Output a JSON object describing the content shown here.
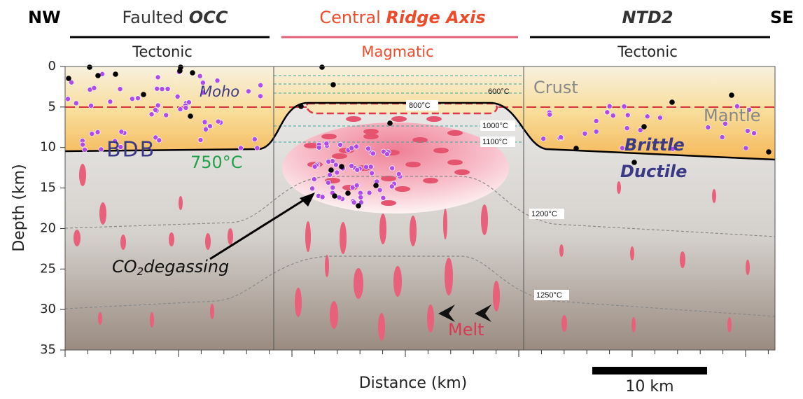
{
  "header": {
    "left_end": "NW",
    "right_end": "SE",
    "sections": [
      {
        "title_prefix": "Faulted",
        "title_emph": "OCC",
        "subtitle": "Tectonic"
      },
      {
        "title_prefix": "Central",
        "title_emph": "Ridge Axis",
        "subtitle": "Magmatic"
      },
      {
        "title_emph": "NTD2",
        "subtitle": "Tectonic"
      }
    ]
  },
  "axes": {
    "y_label": "Depth (km)",
    "x_label": "Distance (km)",
    "y_ticks": [
      0,
      5,
      10,
      15,
      20,
      25,
      30,
      35
    ]
  },
  "scale_bar": "10 km",
  "labels": {
    "moho": "Moho",
    "crust": "Crust",
    "mantle": "Mantle",
    "bdb": "BDB",
    "isotherm_750": "750°C",
    "brittle": "Brittle",
    "ductile": "Ductile",
    "co2": {
      "main": "CO",
      "sub": "2",
      "rest": "degassing"
    },
    "melt": "Melt"
  },
  "isotherms": [
    "600°C",
    "800°C",
    "1000°C",
    "1100°C",
    "1200°C",
    "1250°C"
  ]
}
